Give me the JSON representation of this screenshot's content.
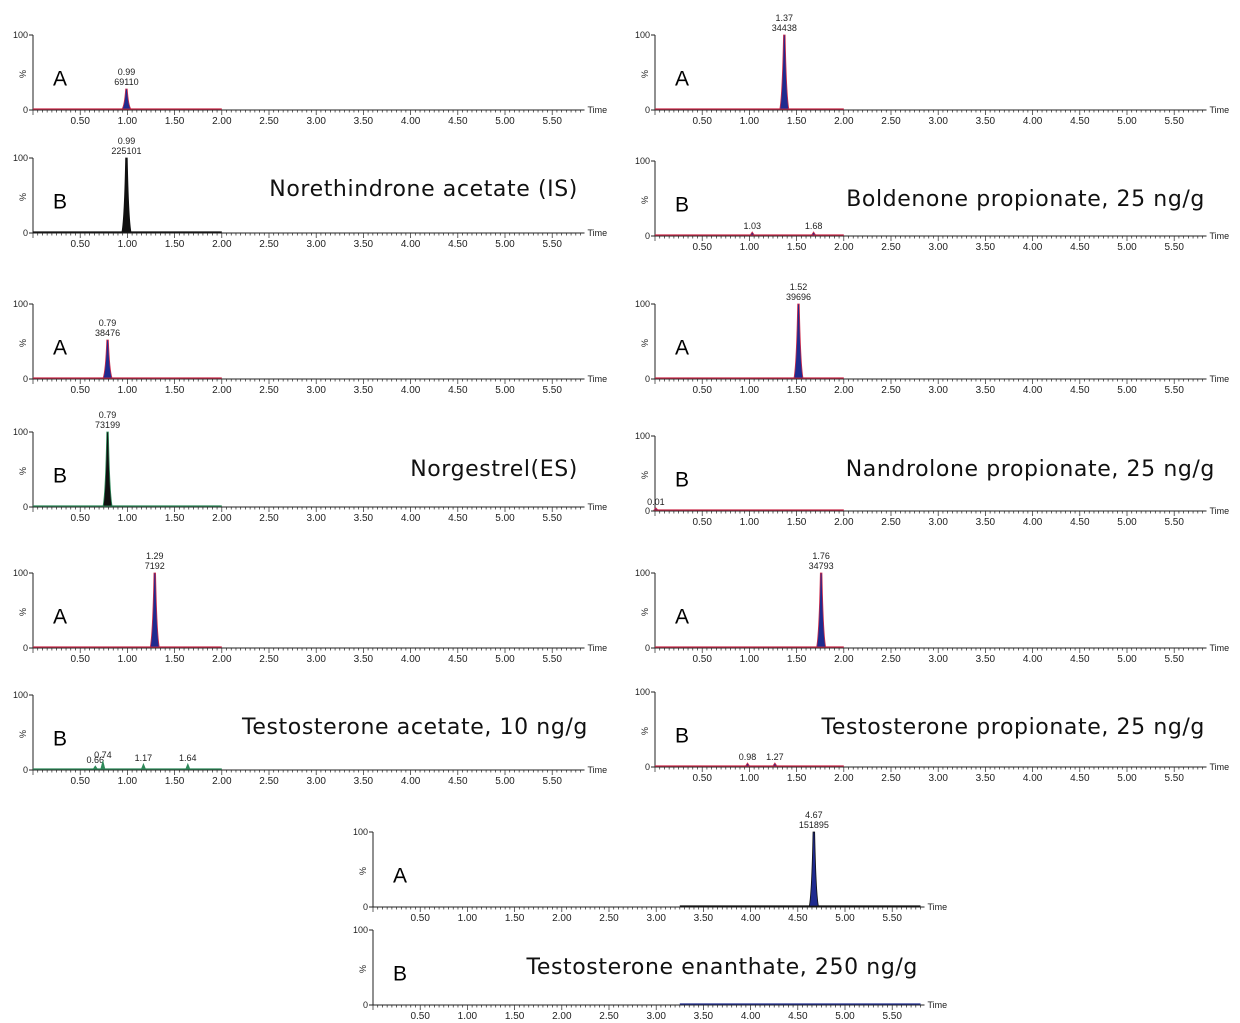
{
  "chart_data": {
    "type": "line",
    "axis": {
      "x_ticks": [
        "0.50",
        "1.00",
        "1.50",
        "2.00",
        "2.50",
        "3.00",
        "3.50",
        "4.00",
        "4.50",
        "5.00",
        "5.50"
      ],
      "x_tick_values": [
        0.5,
        1.0,
        1.5,
        2.0,
        2.5,
        3.0,
        3.5,
        4.0,
        4.5,
        5.0,
        5.5
      ],
      "xlabel": "Time",
      "ylabel": "%",
      "y_ticks": [
        "0",
        "100"
      ],
      "xlim": [
        0,
        5.8
      ],
      "ylim": [
        0,
        100
      ]
    },
    "colors": {
      "red": "#cc2a4a",
      "blue": "#1f2b8f",
      "green": "#2f8a5a",
      "black": "#101010",
      "axis": "#222222"
    },
    "panels": [
      {
        "compound": "Norethindrone acetate (IS)",
        "traces": [
          {
            "label": "A",
            "color": "red",
            "fill": "blue",
            "extent": 2.0,
            "peak_rt": 0.99,
            "peak_label": [
              "0.99",
              "69110"
            ],
            "peak_height": 28,
            "minor": []
          },
          {
            "label": "B",
            "color": "black",
            "fill": "black",
            "extent": 2.0,
            "peak_rt": 0.99,
            "peak_label": [
              "0.99",
              "225101"
            ],
            "peak_height": 100,
            "minor": []
          }
        ]
      },
      {
        "compound": "Boldenone propionate, 25 ng/g",
        "traces": [
          {
            "label": "A",
            "color": "red",
            "fill": "blue",
            "extent": 2.0,
            "peak_rt": 1.37,
            "peak_label": [
              "1.37",
              "34438"
            ],
            "peak_height": 100,
            "minor": []
          },
          {
            "label": "B",
            "color": "red",
            "fill": "blue",
            "extent": 2.0,
            "peak_rt": null,
            "peak_label": [],
            "peak_height": 0,
            "minor": [
              {
                "rt": 1.03,
                "label": "1.03",
                "h": 3
              },
              {
                "rt": 1.68,
                "label": "1.68",
                "h": 3
              }
            ]
          }
        ]
      },
      {
        "compound": "Norgestrel(ES)",
        "traces": [
          {
            "label": "A",
            "color": "red",
            "fill": "blue",
            "extent": 2.0,
            "peak_rt": 0.79,
            "peak_label": [
              "0.79",
              "38476"
            ],
            "peak_height": 52,
            "minor": []
          },
          {
            "label": "B",
            "color": "green",
            "fill": "black",
            "extent": 2.0,
            "peak_rt": 0.79,
            "peak_label": [
              "0.79",
              "73199"
            ],
            "peak_height": 100,
            "minor": []
          }
        ]
      },
      {
        "compound": "Nandrolone propionate, 25 ng/g",
        "traces": [
          {
            "label": "A",
            "color": "red",
            "fill": "blue",
            "extent": 2.0,
            "peak_rt": 1.52,
            "peak_label": [
              "1.52",
              "39696"
            ],
            "peak_height": 100,
            "minor": []
          },
          {
            "label": "B",
            "color": "red",
            "fill": "blue",
            "extent": 2.0,
            "peak_rt": null,
            "peak_label": [],
            "peak_height": 0,
            "minor": [
              {
                "rt": 0.01,
                "label": "0.01",
                "h": 2
              }
            ]
          }
        ]
      },
      {
        "compound": "Testosterone acetate, 10 ng/g",
        "traces": [
          {
            "label": "A",
            "color": "red",
            "fill": "blue",
            "extent": 2.0,
            "peak_rt": 1.29,
            "peak_label": [
              "1.29",
              "7192"
            ],
            "peak_height": 100,
            "minor": []
          },
          {
            "label": "B",
            "color": "green",
            "fill": "green",
            "extent": 2.0,
            "peak_rt": null,
            "peak_label": [],
            "peak_height": 0,
            "minor": [
              {
                "rt": 0.66,
                "label": "0.66",
                "h": 3
              },
              {
                "rt": 0.74,
                "label": "0.74",
                "h": 8
              },
              {
                "rt": 1.17,
                "label": "1.17",
                "h": 5
              },
              {
                "rt": 1.64,
                "label": "1.64",
                "h": 5
              }
            ]
          }
        ]
      },
      {
        "compound": "Testosterone propionate, 25 ng/g",
        "traces": [
          {
            "label": "A",
            "color": "red",
            "fill": "blue",
            "extent": 2.0,
            "peak_rt": 1.76,
            "peak_label": [
              "1.76",
              "34793"
            ],
            "peak_height": 100,
            "minor": []
          },
          {
            "label": "B",
            "color": "red",
            "fill": "blue",
            "extent": 2.0,
            "peak_rt": null,
            "peak_label": [],
            "peak_height": 0,
            "minor": [
              {
                "rt": 0.98,
                "label": "0.98",
                "h": 3
              },
              {
                "rt": 1.27,
                "label": "1.27",
                "h": 3
              }
            ]
          }
        ]
      },
      {
        "compound": "Testosterone enanthate, 250 ng/g",
        "traces": [
          {
            "label": "A",
            "color": "black",
            "fill": "blue",
            "extent": 5.8,
            "peak_rt": 4.67,
            "peak_label": [
              "4.67",
              "151895"
            ],
            "peak_height": 100,
            "minor": []
          },
          {
            "label": "B",
            "color": "blue",
            "fill": "blue",
            "extent": 5.8,
            "peak_rt": null,
            "peak_label": [],
            "peak_height": 0,
            "minor": []
          }
        ]
      }
    ]
  }
}
